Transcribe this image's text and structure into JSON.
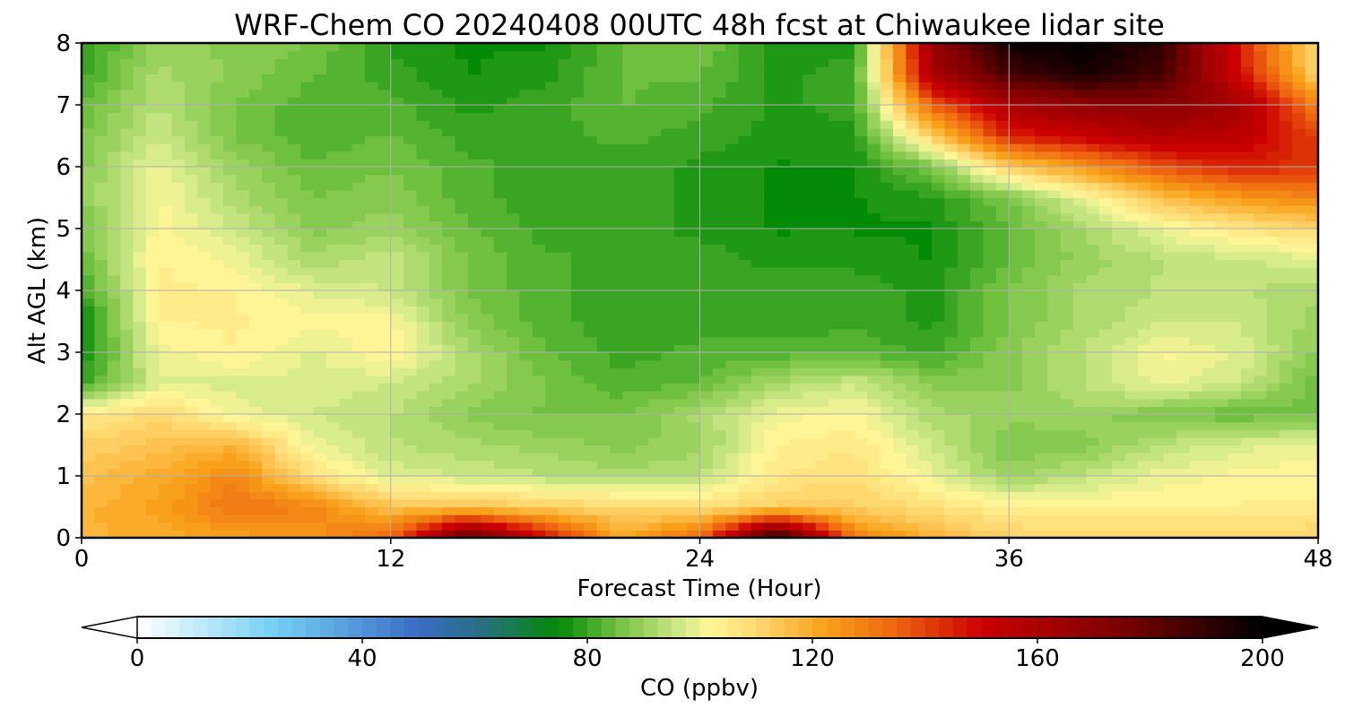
{
  "chart_data": {
    "type": "heatmap",
    "title": "WRF-Chem CO  20240408 00UTC 48h fcst at Chiwaukee lidar site",
    "xlabel": "Forecast Time (Hour)",
    "ylabel": "Alt AGL (km)",
    "xlim": [
      0,
      48
    ],
    "ylim": [
      0,
      8
    ],
    "x_ticks": [
      "0",
      "12",
      "24",
      "36",
      "48"
    ],
    "y_ticks": [
      "0",
      "1",
      "2",
      "3",
      "4",
      "5",
      "6",
      "7",
      "8"
    ],
    "grid": true,
    "x": [
      0,
      3,
      6,
      9,
      12,
      15,
      18,
      21,
      24,
      27,
      30,
      33,
      36,
      39,
      42,
      45,
      48
    ],
    "y": [
      0,
      0.5,
      1,
      1.5,
      2,
      2.5,
      3,
      3.5,
      4,
      4.5,
      5,
      5.5,
      6,
      6.5,
      7,
      7.5,
      8
    ],
    "z": [
      [
        118,
        120,
        122,
        125,
        135,
        185,
        150,
        120,
        135,
        195,
        130,
        118,
        112,
        110,
        110,
        110,
        112
      ],
      [
        118,
        122,
        132,
        128,
        115,
        115,
        112,
        110,
        108,
        112,
        112,
        108,
        104,
        104,
        104,
        104,
        104
      ],
      [
        115,
        120,
        128,
        108,
        98,
        96,
        94,
        92,
        94,
        106,
        108,
        100,
        90,
        95,
        100,
        102,
        103
      ],
      [
        112,
        115,
        118,
        100,
        94,
        92,
        90,
        88,
        90,
        104,
        106,
        96,
        86,
        88,
        94,
        98,
        100
      ],
      [
        105,
        110,
        100,
        96,
        94,
        88,
        86,
        86,
        92,
        100,
        102,
        92,
        90,
        90,
        86,
        84,
        86
      ],
      [
        80,
        98,
        98,
        98,
        96,
        92,
        86,
        82,
        84,
        92,
        96,
        88,
        88,
        94,
        100,
        96,
        84
      ],
      [
        76,
        100,
        104,
        98,
        104,
        92,
        84,
        80,
        82,
        82,
        84,
        80,
        88,
        94,
        102,
        98,
        88
      ],
      [
        74,
        104,
        104,
        102,
        102,
        88,
        82,
        80,
        80,
        80,
        80,
        78,
        86,
        92,
        96,
        96,
        90
      ],
      [
        80,
        104,
        104,
        98,
        96,
        86,
        82,
        80,
        80,
        80,
        80,
        78,
        86,
        92,
        94,
        94,
        92
      ],
      [
        84,
        104,
        100,
        92,
        96,
        86,
        82,
        80,
        80,
        78,
        78,
        76,
        84,
        90,
        94,
        96,
        98
      ],
      [
        86,
        102,
        96,
        88,
        90,
        84,
        80,
        80,
        78,
        76,
        76,
        76,
        84,
        92,
        100,
        106,
        110
      ],
      [
        88,
        102,
        92,
        86,
        88,
        82,
        80,
        80,
        78,
        76,
        76,
        78,
        86,
        100,
        116,
        124,
        128
      ],
      [
        88,
        100,
        90,
        84,
        86,
        82,
        80,
        80,
        78,
        76,
        76,
        86,
        112,
        125,
        138,
        145,
        142
      ],
      [
        86,
        96,
        86,
        82,
        84,
        80,
        80,
        82,
        80,
        78,
        78,
        112,
        145,
        152,
        158,
        155,
        140
      ],
      [
        84,
        94,
        86,
        82,
        82,
        78,
        80,
        84,
        82,
        78,
        80,
        135,
        160,
        168,
        170,
        162,
        128
      ],
      [
        80,
        92,
        88,
        84,
        80,
        76,
        78,
        84,
        84,
        78,
        80,
        160,
        185,
        195,
        185,
        148,
        110
      ],
      [
        78,
        90,
        88,
        86,
        78,
        76,
        76,
        84,
        86,
        78,
        78,
        165,
        198,
        200,
        190,
        145,
        108
      ]
    ],
    "colorbar": {
      "label": "CO  (ppbv)",
      "min": 0,
      "max": 200,
      "ticks": [
        "0",
        "40",
        "80",
        "120",
        "160",
        "200"
      ],
      "extend": "both",
      "colormap": [
        [
          0,
          "#ffffff"
        ],
        [
          25,
          "#72cdf4"
        ],
        [
          50,
          "#3b6dc4"
        ],
        [
          60,
          "#2b6e8a"
        ],
        [
          75,
          "#038a06"
        ],
        [
          85,
          "#70c040"
        ],
        [
          97,
          "#d4eb8a"
        ],
        [
          102,
          "#fff799"
        ],
        [
          112,
          "#ffd066"
        ],
        [
          122,
          "#f9a21a"
        ],
        [
          135,
          "#ee6410"
        ],
        [
          150,
          "#cc0000"
        ],
        [
          175,
          "#7a0000"
        ],
        [
          200,
          "#000000"
        ]
      ]
    }
  }
}
